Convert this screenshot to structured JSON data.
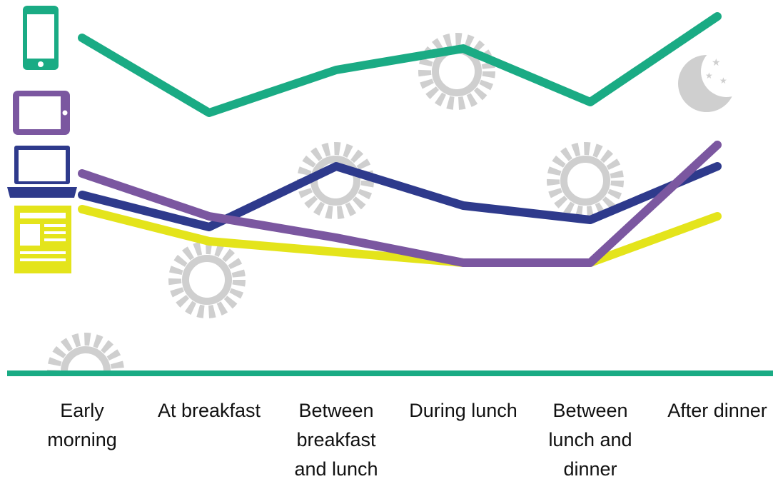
{
  "chart_data": {
    "type": "line",
    "categories": [
      "Early morning",
      "At breakfast",
      "Between breakfast and lunch",
      "During lunch",
      "Between lunch and dinner",
      "After dinner"
    ],
    "ylim": [
      0,
      100
    ],
    "series": [
      {
        "color": "#1aab84",
        "values": [
          94,
          73,
          85,
          91,
          76,
          100
        ]
      },
      {
        "color": "#2e3a8c",
        "values": [
          50,
          41,
          58,
          47,
          43,
          58
        ]
      },
      {
        "color": "#7b57a0",
        "values": [
          56,
          44,
          38,
          31,
          31,
          64
        ]
      },
      {
        "color": "#e4e41b",
        "values": [
          46,
          37,
          34,
          31,
          31,
          44
        ]
      }
    ]
  }
}
